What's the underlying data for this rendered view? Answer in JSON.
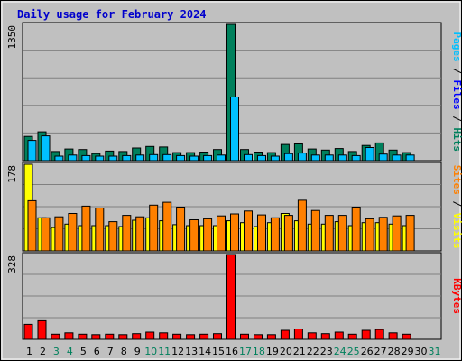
{
  "title": "Daily usage for February 2024",
  "colors": {
    "hits": "#00805c",
    "files": "#00c0ff",
    "visits": "#ffff00",
    "sites": "#ff8000",
    "kbytes": "#ff0000",
    "weekday": "#000000",
    "weekend": "#00805c",
    "plot_bg": "#c0c0c0",
    "grid": "#808080"
  },
  "chart_data": [
    {
      "type": "bar",
      "panel": "top",
      "ymax_label": "1350",
      "right_label": [
        {
          "text": "Pages",
          "color": "#00c0ff"
        },
        {
          "text": " / ",
          "color": "#000000"
        },
        {
          "text": "Files",
          "color": "#0000ff"
        },
        {
          "text": " / ",
          "color": "#000000"
        },
        {
          "text": "Hits",
          "color": "#00805c"
        }
      ],
      "ylim": [
        0,
        1350
      ],
      "categories": [
        "1",
        "2",
        "3",
        "4",
        "5",
        "6",
        "7",
        "8",
        "9",
        "10",
        "11",
        "12",
        "13",
        "14",
        "15",
        "16",
        "17",
        "18",
        "19",
        "20",
        "21",
        "22",
        "23",
        "24",
        "25",
        "26",
        "27",
        "28",
        "29",
        "30",
        "31"
      ],
      "series": [
        {
          "key": "hits",
          "values": [
            240,
            285,
            90,
            115,
            110,
            70,
            95,
            90,
            125,
            140,
            135,
            80,
            80,
            85,
            110,
            1350,
            110,
            85,
            80,
            160,
            165,
            115,
            105,
            120,
            90,
            150,
            175,
            105,
            80,
            0,
            0
          ]
        },
        {
          "key": "files",
          "values": [
            200,
            245,
            45,
            55,
            50,
            45,
            45,
            50,
            55,
            60,
            60,
            50,
            45,
            50,
            55,
            630,
            60,
            50,
            45,
            70,
            75,
            55,
            55,
            55,
            50,
            130,
            65,
            55,
            55,
            0,
            0
          ]
        }
      ]
    },
    {
      "type": "bar",
      "panel": "middle",
      "ymax_label": "178",
      "right_label": [
        {
          "text": "Sites",
          "color": "#ff8000"
        },
        {
          "text": " / ",
          "color": "#000000"
        },
        {
          "text": "Visits",
          "color": "#ffff00"
        }
      ],
      "ylim": [
        0,
        178
      ],
      "categories": [
        "1",
        "2",
        "3",
        "4",
        "5",
        "6",
        "7",
        "8",
        "9",
        "10",
        "11",
        "12",
        "13",
        "14",
        "15",
        "16",
        "17",
        "18",
        "19",
        "20",
        "21",
        "22",
        "23",
        "24",
        "25",
        "26",
        "27",
        "28",
        "29",
        "30",
        "31"
      ],
      "series": [
        {
          "key": "visits",
          "values": [
            178,
            68,
            48,
            55,
            52,
            52,
            52,
            50,
            63,
            68,
            62,
            54,
            52,
            52,
            52,
            62,
            58,
            50,
            58,
            77,
            62,
            55,
            55,
            60,
            52,
            58,
            58,
            55,
            52,
            0,
            0
          ]
        },
        {
          "key": "sites",
          "values": [
            103,
            68,
            70,
            77,
            92,
            88,
            60,
            73,
            70,
            94,
            100,
            90,
            64,
            66,
            72,
            76,
            82,
            74,
            68,
            73,
            104,
            83,
            73,
            73,
            90,
            66,
            69,
            72,
            73,
            0,
            0
          ]
        }
      ]
    },
    {
      "type": "bar",
      "panel": "bottom",
      "ymax_label": "328",
      "right_label": [
        {
          "text": "KBytes",
          "color": "#ff0000"
        }
      ],
      "ylim": [
        0,
        328
      ],
      "categories": [
        "1",
        "2",
        "3",
        "4",
        "5",
        "6",
        "7",
        "8",
        "9",
        "10",
        "11",
        "12",
        "13",
        "14",
        "15",
        "16",
        "17",
        "18",
        "19",
        "20",
        "21",
        "22",
        "23",
        "24",
        "25",
        "26",
        "27",
        "28",
        "29",
        "30",
        "31"
      ],
      "series": [
        {
          "key": "kbytes",
          "values": [
            58,
            72,
            20,
            25,
            20,
            18,
            20,
            18,
            22,
            28,
            25,
            20,
            18,
            20,
            22,
            328,
            20,
            18,
            18,
            35,
            40,
            25,
            22,
            28,
            20,
            35,
            38,
            25,
            20,
            0,
            0
          ]
        }
      ]
    }
  ],
  "day_labels": [
    {
      "text": "1",
      "weekend": false
    },
    {
      "text": "2",
      "weekend": false
    },
    {
      "text": "3",
      "weekend": true
    },
    {
      "text": "4",
      "weekend": true
    },
    {
      "text": "5",
      "weekend": false
    },
    {
      "text": "6",
      "weekend": false
    },
    {
      "text": "7",
      "weekend": false
    },
    {
      "text": "8",
      "weekend": false
    },
    {
      "text": "9",
      "weekend": false
    },
    {
      "text": "10",
      "weekend": true
    },
    {
      "text": "11",
      "weekend": true
    },
    {
      "text": "12",
      "weekend": false
    },
    {
      "text": "13",
      "weekend": false
    },
    {
      "text": "14",
      "weekend": false
    },
    {
      "text": "15",
      "weekend": false
    },
    {
      "text": "16",
      "weekend": false
    },
    {
      "text": "17",
      "weekend": true
    },
    {
      "text": "18",
      "weekend": true
    },
    {
      "text": "19",
      "weekend": false
    },
    {
      "text": "20",
      "weekend": false
    },
    {
      "text": "21",
      "weekend": false
    },
    {
      "text": "22",
      "weekend": false
    },
    {
      "text": "23",
      "weekend": false
    },
    {
      "text": "24",
      "weekend": true
    },
    {
      "text": "25",
      "weekend": true
    },
    {
      "text": "26",
      "weekend": false
    },
    {
      "text": "27",
      "weekend": false
    },
    {
      "text": "28",
      "weekend": false
    },
    {
      "text": "29",
      "weekend": false
    },
    {
      "text": "30",
      "weekend": false
    },
    {
      "text": "31",
      "weekend": true
    }
  ]
}
